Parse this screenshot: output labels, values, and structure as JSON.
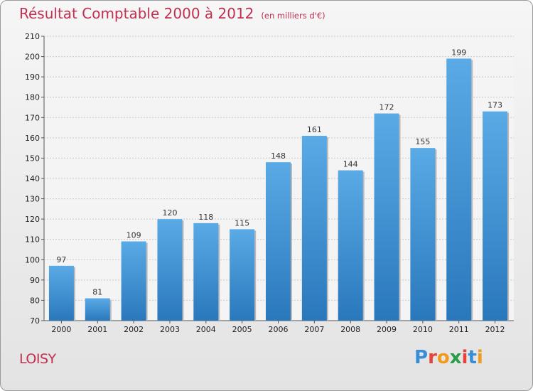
{
  "header": {
    "title": "Résultat Comptable 2000 à 2012",
    "subtitle": "(en milliers d'€)"
  },
  "footer": {
    "place": "LOISY",
    "logo_text": "Proxiti",
    "logo_colors": [
      "#3a8ed8",
      "#e8423a",
      "#f29a1c",
      "#2b9d4a",
      "#e8423a",
      "#3a8ed8",
      "#f29a1c"
    ]
  },
  "colors": {
    "accent": "#c03050",
    "bar_light": "#5aaae6",
    "bar_dark": "#2a78bc"
  },
  "chart_data": {
    "type": "bar",
    "title": "Résultat Comptable 2000 à 2012",
    "subtitle": "(en milliers d'€)",
    "categories": [
      "2000",
      "2001",
      "2002",
      "2003",
      "2004",
      "2005",
      "2006",
      "2007",
      "2008",
      "2009",
      "2010",
      "2011",
      "2012"
    ],
    "values": [
      97,
      81,
      109,
      120,
      118,
      115,
      148,
      161,
      144,
      172,
      155,
      199,
      173
    ],
    "data_labels": [
      "97",
      "81",
      "109",
      "120",
      "118",
      "115",
      "148",
      "161",
      "144",
      "172",
      "155",
      "199",
      "173"
    ],
    "ylim": [
      70,
      210
    ],
    "yticks": [
      70,
      80,
      90,
      100,
      110,
      120,
      130,
      140,
      150,
      160,
      170,
      180,
      190,
      200,
      210
    ],
    "grid": true,
    "legend": "none"
  }
}
